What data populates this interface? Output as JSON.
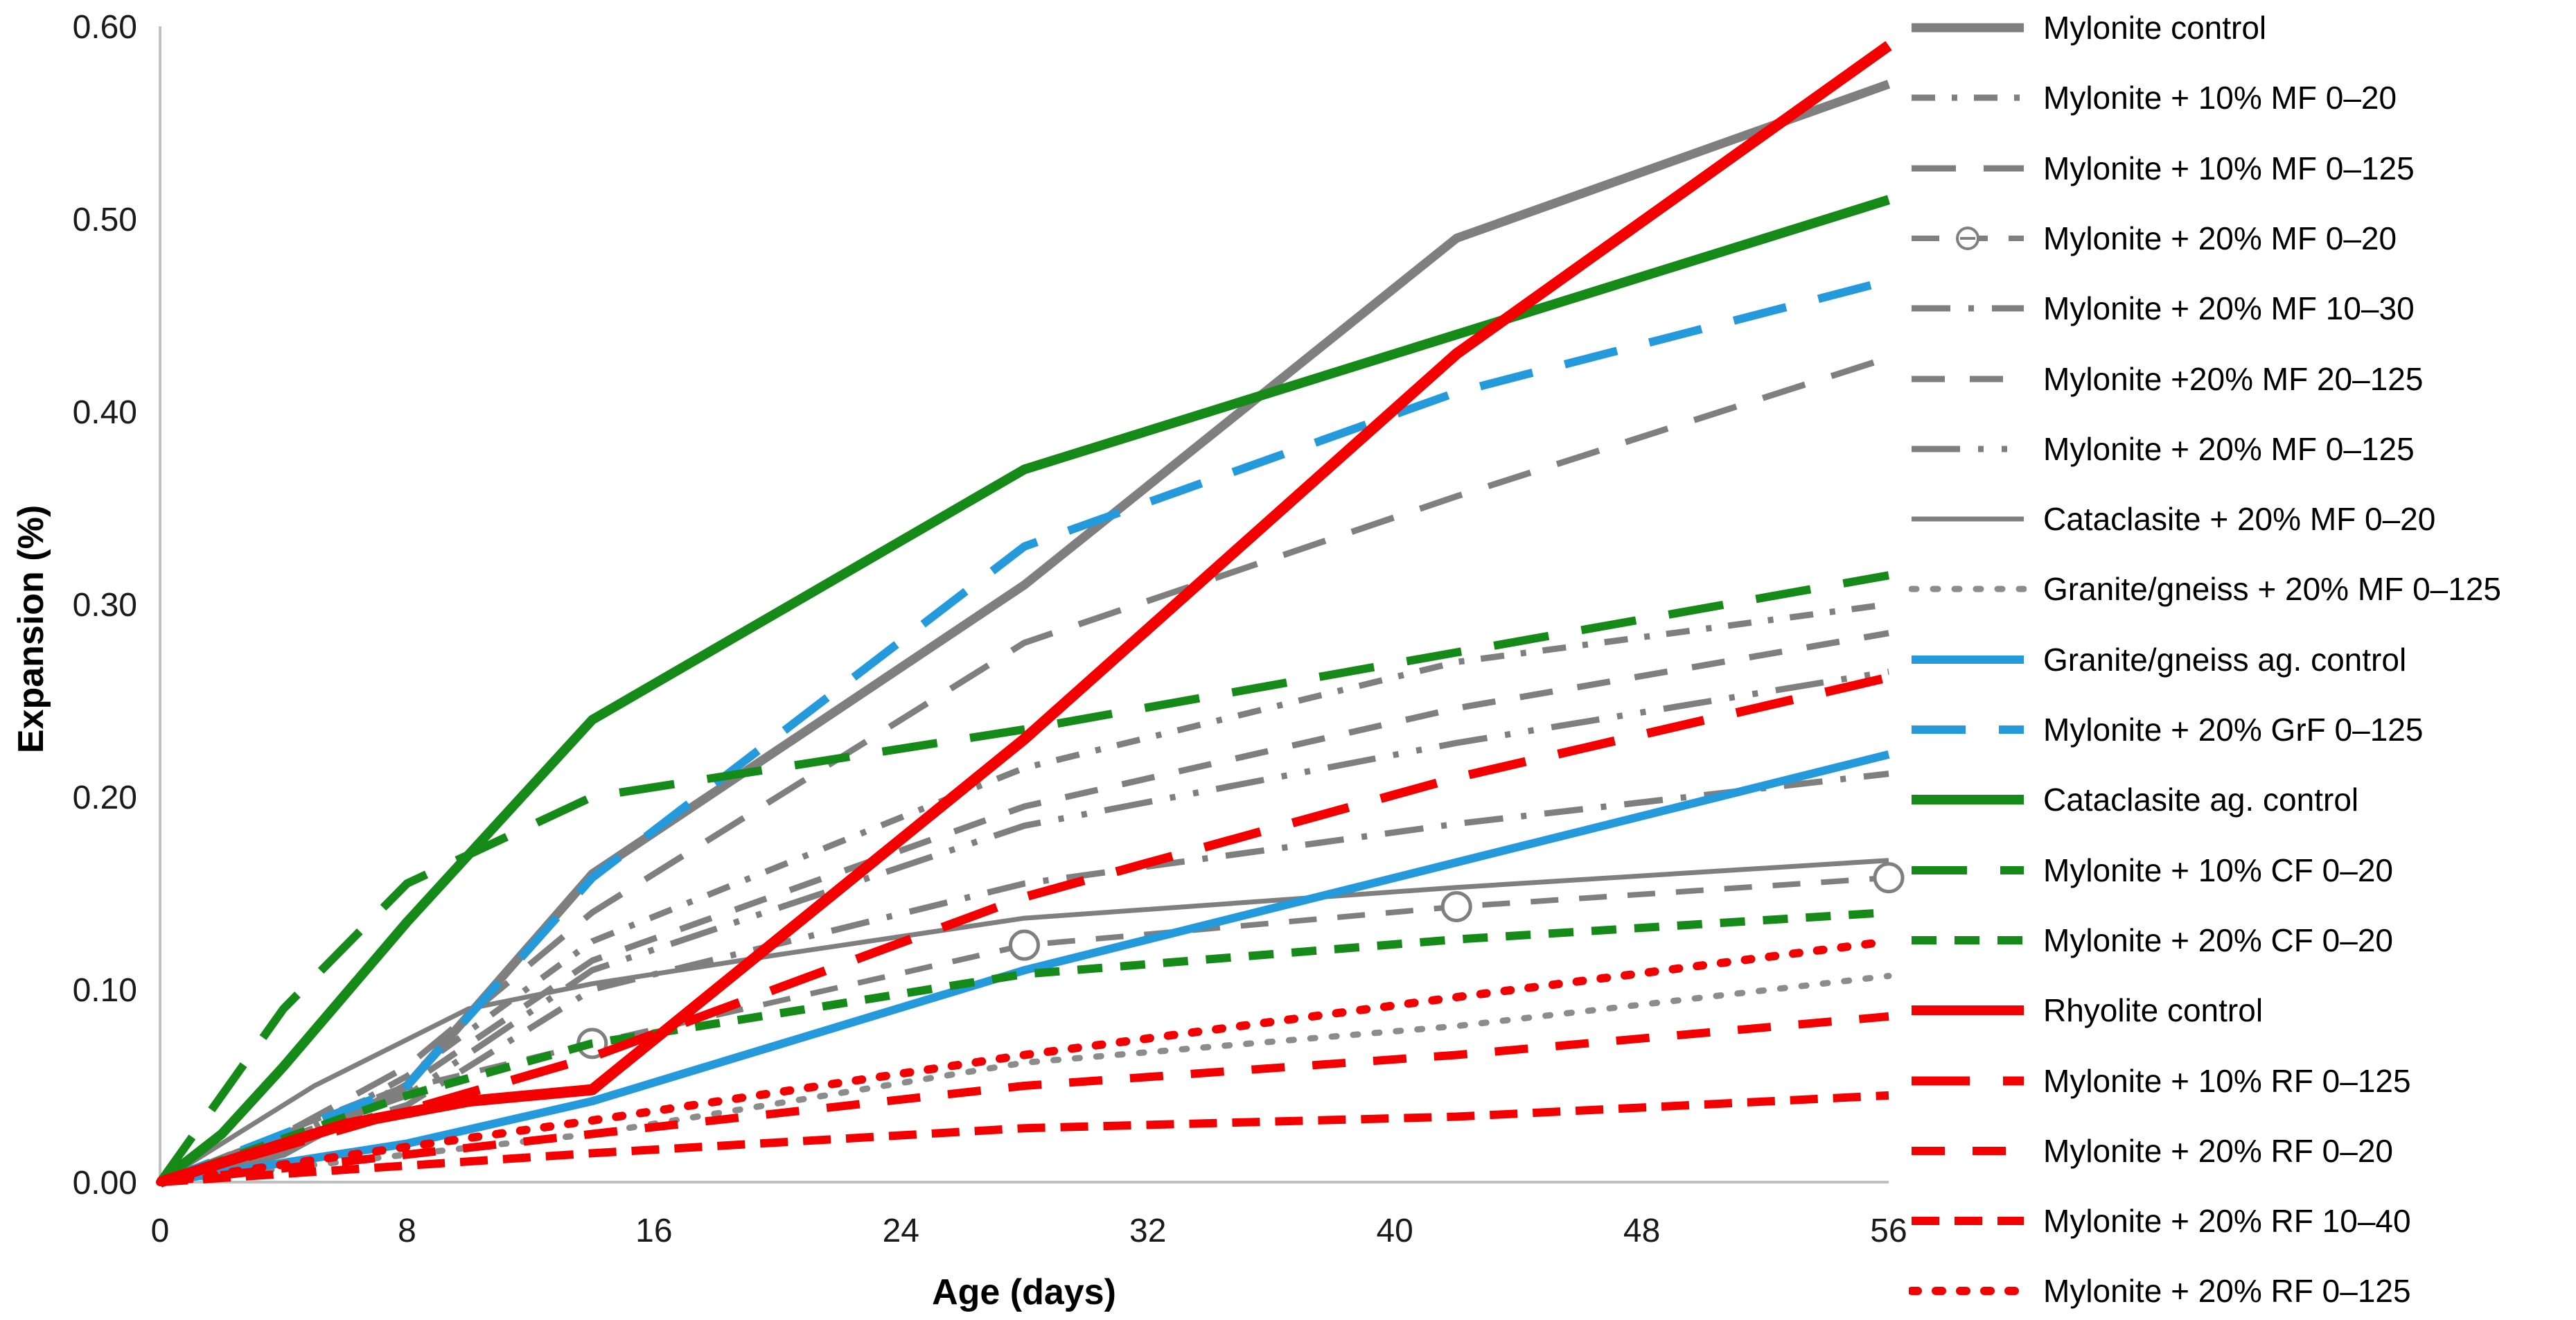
{
  "figure": {
    "background": "#ffffff",
    "axis_line_color": "#c0c0c0",
    "tick_label_color": "#1a1a1a"
  },
  "chart_data": {
    "type": "line",
    "title": "",
    "xlabel": "Age (days)",
    "ylabel": "Expansion (%)",
    "xlim": [
      0,
      56
    ],
    "ylim": [
      0.0,
      0.6
    ],
    "x_ticks": [
      "0",
      "8",
      "16",
      "24",
      "32",
      "40",
      "48",
      "56"
    ],
    "x_tick_values": [
      0,
      8,
      16,
      24,
      32,
      40,
      48,
      56
    ],
    "y_ticks": [
      "0.00",
      "0.10",
      "0.20",
      "0.30",
      "0.40",
      "0.50",
      "0.60"
    ],
    "y_tick_values": [
      0.0,
      0.1,
      0.2,
      0.3,
      0.4,
      0.5,
      0.6
    ],
    "grid": "off",
    "legend_position": "right",
    "series": [
      {
        "name": "Mylonite control",
        "color": "#7f7f7f",
        "width": 13,
        "dash": "",
        "cap": "butt",
        "marker": "none",
        "points": [
          [
            0,
            0
          ],
          [
            4,
            0.015
          ],
          [
            8,
            0.05
          ],
          [
            14,
            0.16
          ],
          [
            28,
            0.31
          ],
          [
            42,
            0.49
          ],
          [
            56,
            0.57
          ]
        ]
      },
      {
        "name": "Mylonite + 10% MF 0–20",
        "color": "#7f7f7f",
        "width": 9,
        "dash": "34 24 8 24",
        "cap": "butt",
        "marker": "none",
        "points": [
          [
            0,
            0
          ],
          [
            4,
            0.02
          ],
          [
            8,
            0.055
          ],
          [
            14,
            0.125
          ],
          [
            28,
            0.215
          ],
          [
            42,
            0.27
          ],
          [
            56,
            0.3
          ]
        ]
      },
      {
        "name": "Mylonite + 10% MF 0–125",
        "color": "#7f7f7f",
        "width": 9,
        "dash": "64 40",
        "cap": "butt",
        "marker": "none",
        "points": [
          [
            0,
            0
          ],
          [
            4,
            0.025
          ],
          [
            8,
            0.06
          ],
          [
            14,
            0.14
          ],
          [
            21,
            0.21
          ],
          [
            28,
            0.28
          ],
          [
            42,
            0.356
          ],
          [
            56,
            0.428
          ]
        ]
      },
      {
        "name": "Mylonite + 20% MF 0–20",
        "color": "#7f7f7f",
        "width": 8,
        "dash": "40 30",
        "cap": "butt",
        "marker": "circle",
        "marker_days": [
          14,
          28,
          42,
          56
        ],
        "points": [
          [
            0,
            0
          ],
          [
            7,
            0.045
          ],
          [
            14,
            0.072
          ],
          [
            28,
            0.123
          ],
          [
            42,
            0.143
          ],
          [
            56,
            0.158
          ]
        ]
      },
      {
        "name": "Mylonite + 20% MF 10–30",
        "color": "#7f7f7f",
        "width": 9,
        "dash": "56 26 8 26",
        "cap": "butt",
        "marker": "none",
        "points": [
          [
            0,
            0
          ],
          [
            8,
            0.04
          ],
          [
            14,
            0.1
          ],
          [
            28,
            0.155
          ],
          [
            42,
            0.186
          ],
          [
            56,
            0.212
          ]
        ]
      },
      {
        "name": "Mylonite +20% MF 20–125",
        "color": "#7f7f7f",
        "width": 9,
        "dash": "48 36",
        "cap": "butt",
        "marker": "none",
        "points": [
          [
            0,
            0
          ],
          [
            8,
            0.05
          ],
          [
            14,
            0.115
          ],
          [
            28,
            0.195
          ],
          [
            42,
            0.246
          ],
          [
            56,
            0.285
          ]
        ]
      },
      {
        "name": "Mylonite + 20% MF 0–125",
        "color": "#7f7f7f",
        "width": 9,
        "dash": "70 26 8 26 8 26",
        "cap": "butt",
        "marker": "none",
        "points": [
          [
            0,
            0
          ],
          [
            8,
            0.045
          ],
          [
            14,
            0.11
          ],
          [
            28,
            0.185
          ],
          [
            42,
            0.228
          ],
          [
            56,
            0.265
          ]
        ]
      },
      {
        "name": "Cataclasite + 20% MF 0–20",
        "color": "#7f7f7f",
        "width": 7,
        "dash": "",
        "cap": "butt",
        "marker": "none",
        "points": [
          [
            0,
            0
          ],
          [
            5,
            0.05
          ],
          [
            10,
            0.09
          ],
          [
            14,
            0.103
          ],
          [
            20,
            0.118
          ],
          [
            28,
            0.137
          ],
          [
            42,
            0.153
          ],
          [
            56,
            0.167
          ]
        ]
      },
      {
        "name": "Granite/gneiss + 20% MF 0–125",
        "color": "#8c8c8c",
        "width": 9,
        "dash": "7 24",
        "cap": "round",
        "marker": "none",
        "points": [
          [
            0,
            0
          ],
          [
            14,
            0.025
          ],
          [
            28,
            0.062
          ],
          [
            42,
            0.081
          ],
          [
            56,
            0.107
          ]
        ]
      },
      {
        "name": "Granite/gneiss ag. control",
        "color": "#2499dc",
        "width": 12,
        "dash": "",
        "cap": "butt",
        "marker": "none",
        "points": [
          [
            0,
            0
          ],
          [
            8,
            0.02
          ],
          [
            14,
            0.042
          ],
          [
            28,
            0.11
          ],
          [
            42,
            0.166
          ],
          [
            56,
            0.222
          ]
        ]
      },
      {
        "name": "Mylonite + 20% GrF 0–125",
        "color": "#2499dc",
        "width": 12,
        "dash": "78 48",
        "cap": "butt",
        "marker": "none",
        "points": [
          [
            0,
            0
          ],
          [
            8,
            0.05
          ],
          [
            14,
            0.158
          ],
          [
            28,
            0.33
          ],
          [
            42,
            0.41
          ],
          [
            56,
            0.468
          ]
        ]
      },
      {
        "name": "Cataclasite ag. control",
        "color": "#168a18",
        "width": 14,
        "dash": "",
        "cap": "butt",
        "marker": "none",
        "points": [
          [
            0,
            0
          ],
          [
            2,
            0.025
          ],
          [
            4,
            0.06
          ],
          [
            8,
            0.135
          ],
          [
            14,
            0.24
          ],
          [
            28,
            0.37
          ],
          [
            42,
            0.44
          ],
          [
            56,
            0.51
          ]
        ]
      },
      {
        "name": "Mylonite + 10% CF 0–20",
        "color": "#168a18",
        "width": 12,
        "dash": "80 48",
        "cap": "butt",
        "marker": "none",
        "points": [
          [
            0,
            0
          ],
          [
            4,
            0.09
          ],
          [
            8,
            0.155
          ],
          [
            14,
            0.2
          ],
          [
            28,
            0.235
          ],
          [
            42,
            0.275
          ],
          [
            56,
            0.315
          ]
        ]
      },
      {
        "name": "Mylonite + 20% CF 0–20",
        "color": "#168a18",
        "width": 12,
        "dash": "36 26",
        "cap": "butt",
        "marker": "none",
        "points": [
          [
            0,
            0
          ],
          [
            8,
            0.045
          ],
          [
            14,
            0.072
          ],
          [
            28,
            0.108
          ],
          [
            42,
            0.126
          ],
          [
            56,
            0.14
          ]
        ]
      },
      {
        "name": "Rhyolite control",
        "color": "#f40000",
        "width": 16,
        "dash": "",
        "cap": "butt",
        "marker": "none",
        "points": [
          [
            0,
            0
          ],
          [
            6,
            0.03
          ],
          [
            10,
            0.042
          ],
          [
            14,
            0.048
          ],
          [
            28,
            0.23
          ],
          [
            42,
            0.43
          ],
          [
            56,
            0.59
          ]
        ]
      },
      {
        "name": "Mylonite + 10% RF 0–125",
        "color": "#f40000",
        "width": 13,
        "dash": "84 48",
        "cap": "butt",
        "marker": "none",
        "points": [
          [
            0,
            0
          ],
          [
            14,
            0.065
          ],
          [
            28,
            0.148
          ],
          [
            42,
            0.21
          ],
          [
            56,
            0.262
          ]
        ]
      },
      {
        "name": "Mylonite + 20% RF 0–20",
        "color": "#f40000",
        "width": 12,
        "dash": "48 40",
        "cap": "butt",
        "marker": "none",
        "points": [
          [
            0,
            0
          ],
          [
            14,
            0.025
          ],
          [
            28,
            0.05
          ],
          [
            42,
            0.066
          ],
          [
            56,
            0.086
          ]
        ]
      },
      {
        "name": "Mylonite + 20% RF 10–40",
        "color": "#f40000",
        "width": 12,
        "dash": "40 22",
        "cap": "butt",
        "marker": "none",
        "points": [
          [
            0,
            0
          ],
          [
            14,
            0.015
          ],
          [
            28,
            0.028
          ],
          [
            42,
            0.034
          ],
          [
            56,
            0.045
          ]
        ]
      },
      {
        "name": "Mylonite + 20% RF 0–125",
        "color": "#f40000",
        "width": 12,
        "dash": "9 26",
        "cap": "round",
        "marker": "none",
        "points": [
          [
            0,
            0
          ],
          [
            14,
            0.032
          ],
          [
            28,
            0.066
          ],
          [
            42,
            0.096
          ],
          [
            56,
            0.125
          ]
        ]
      }
    ]
  }
}
